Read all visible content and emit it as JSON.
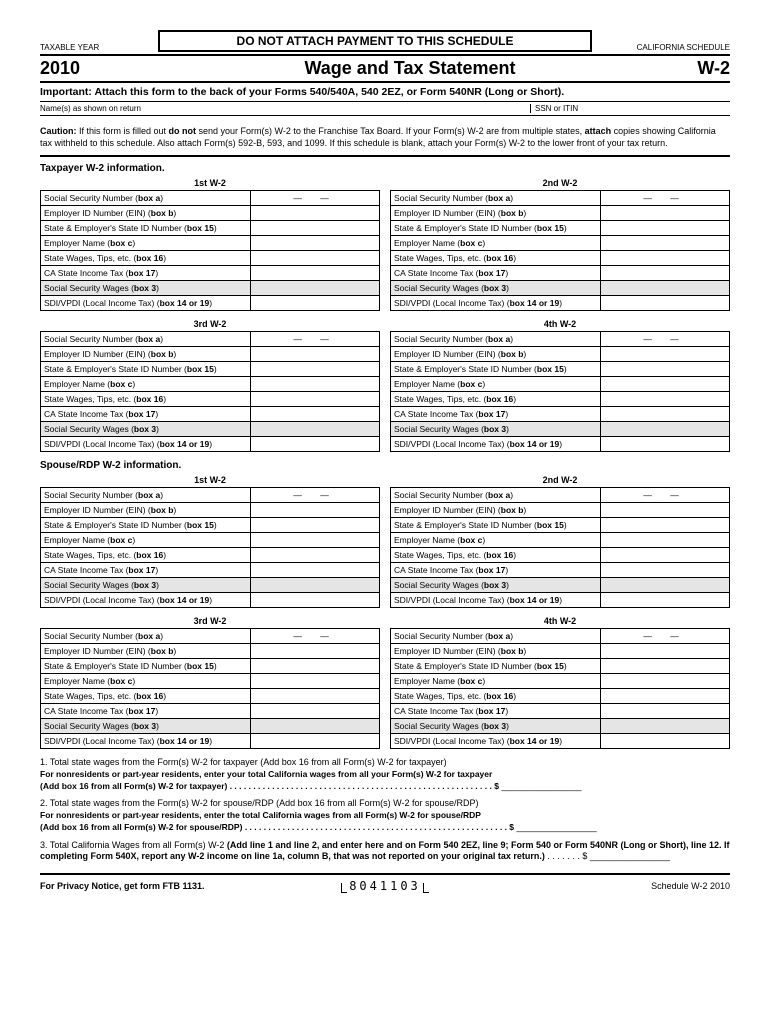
{
  "header": {
    "taxable_year_label": "TAXABLE YEAR",
    "no_attach": "DO NOT ATTACH PAYMENT TO THIS SCHEDULE",
    "ca_schedule": "CALIFORNIA SCHEDULE",
    "year": "2010",
    "title": "Wage and Tax Statement",
    "code": "W-2",
    "important": "Important: Attach this form to the back of your Forms 540/540A, 540 2EZ, or Form 540NR (Long or Short).",
    "names_label": "Name(s) as shown on return",
    "ssn_label": "SSN or ITIN"
  },
  "caution": {
    "prefix": "Caution:",
    "text1": " If this form is filled out ",
    "bold1": "do not",
    "text2": " send your Form(s) W-2 to the Franchise Tax Board. If your Form(s) W-2 are from multiple states, ",
    "bold2": "attach",
    "text3": " copies showing California tax withheld to this schedule. Also attach Form(s) 592-B, 593, and 1099. If this schedule is blank, attach your Form(s) W-2 to the lower front of your tax return."
  },
  "sections": {
    "taxpayer": "Taxpayer W-2 information.",
    "spouse": "Spouse/RDP W-2 information."
  },
  "w2_headers": [
    "1st W-2",
    "2nd W-2",
    "3rd W-2",
    "4th W-2"
  ],
  "rows": {
    "r1": {
      "label": "Social Security Number (",
      "bold": "box a",
      "suffix": ")"
    },
    "r2": {
      "label": "Employer ID Number (EIN) (",
      "bold": "box b",
      "suffix": ")"
    },
    "r3": {
      "label": "State & Employer's State ID Number (",
      "bold": "box 15",
      "suffix": ")"
    },
    "r4": {
      "label": "Employer Name (",
      "bold": "box c",
      "suffix": ")"
    },
    "r5": {
      "label": "State Wages, Tips, etc. (",
      "bold": "box 16",
      "suffix": ")"
    },
    "r6": {
      "label": "CA State Income Tax (",
      "bold": "box 17",
      "suffix": ")"
    },
    "r7": {
      "label": "Social Security Wages (",
      "bold": "box 3",
      "suffix": ")"
    },
    "r8": {
      "label": "SDI/VPDI (Local Income Tax) (",
      "bold": "box 14 or 19",
      "suffix": ")"
    }
  },
  "ssn_dash": "— —",
  "totals": {
    "t1": {
      "num": "1.",
      "text": "Total state wages from the Form(s) W-2 for taxpayer (Add box 16 from all Form(s) W-2 for taxpayer)",
      "sub": "For nonresidents or part-year residents, enter your total California wages from all your Form(s) W-2 for taxpayer",
      "add": "(Add box 16 from all Form(s) W-2 for taxpayer)"
    },
    "t2": {
      "num": "2.",
      "text": "Total state wages from the Form(s) W-2 for spouse/RDP (Add box 16 from all Form(s) W-2 for spouse/RDP)",
      "sub": "For nonresidents or part-year residents, enter the total California wages from all Form(s) W-2 for spouse/RDP",
      "add": "(Add box 16 from all Form(s) W-2 for spouse/RDP)"
    },
    "t3": {
      "num": "3.",
      "text": "Total California Wages from all Form(s) W-2 ",
      "bold": "(Add line 1 and line 2, and enter here and on Form 540 2EZ, line 9; Form 540 or Form 540NR (Long or Short), line 12. If completing Form 540X, report any W-2 income on line 1a, column B, that was not reported on your original tax return.)"
    },
    "dots": ". . . . . . . . . . . . . . . . . . . . . . . . . . . . . . . . . . . . . . . . . . . . . . . . . . . . . . . . $",
    "dots_short": ". . . . . . . $"
  },
  "footer": {
    "left": "For Privacy Notice, get form FTB 1131.",
    "mid": "8041103",
    "right": "Schedule W-2 2010"
  }
}
